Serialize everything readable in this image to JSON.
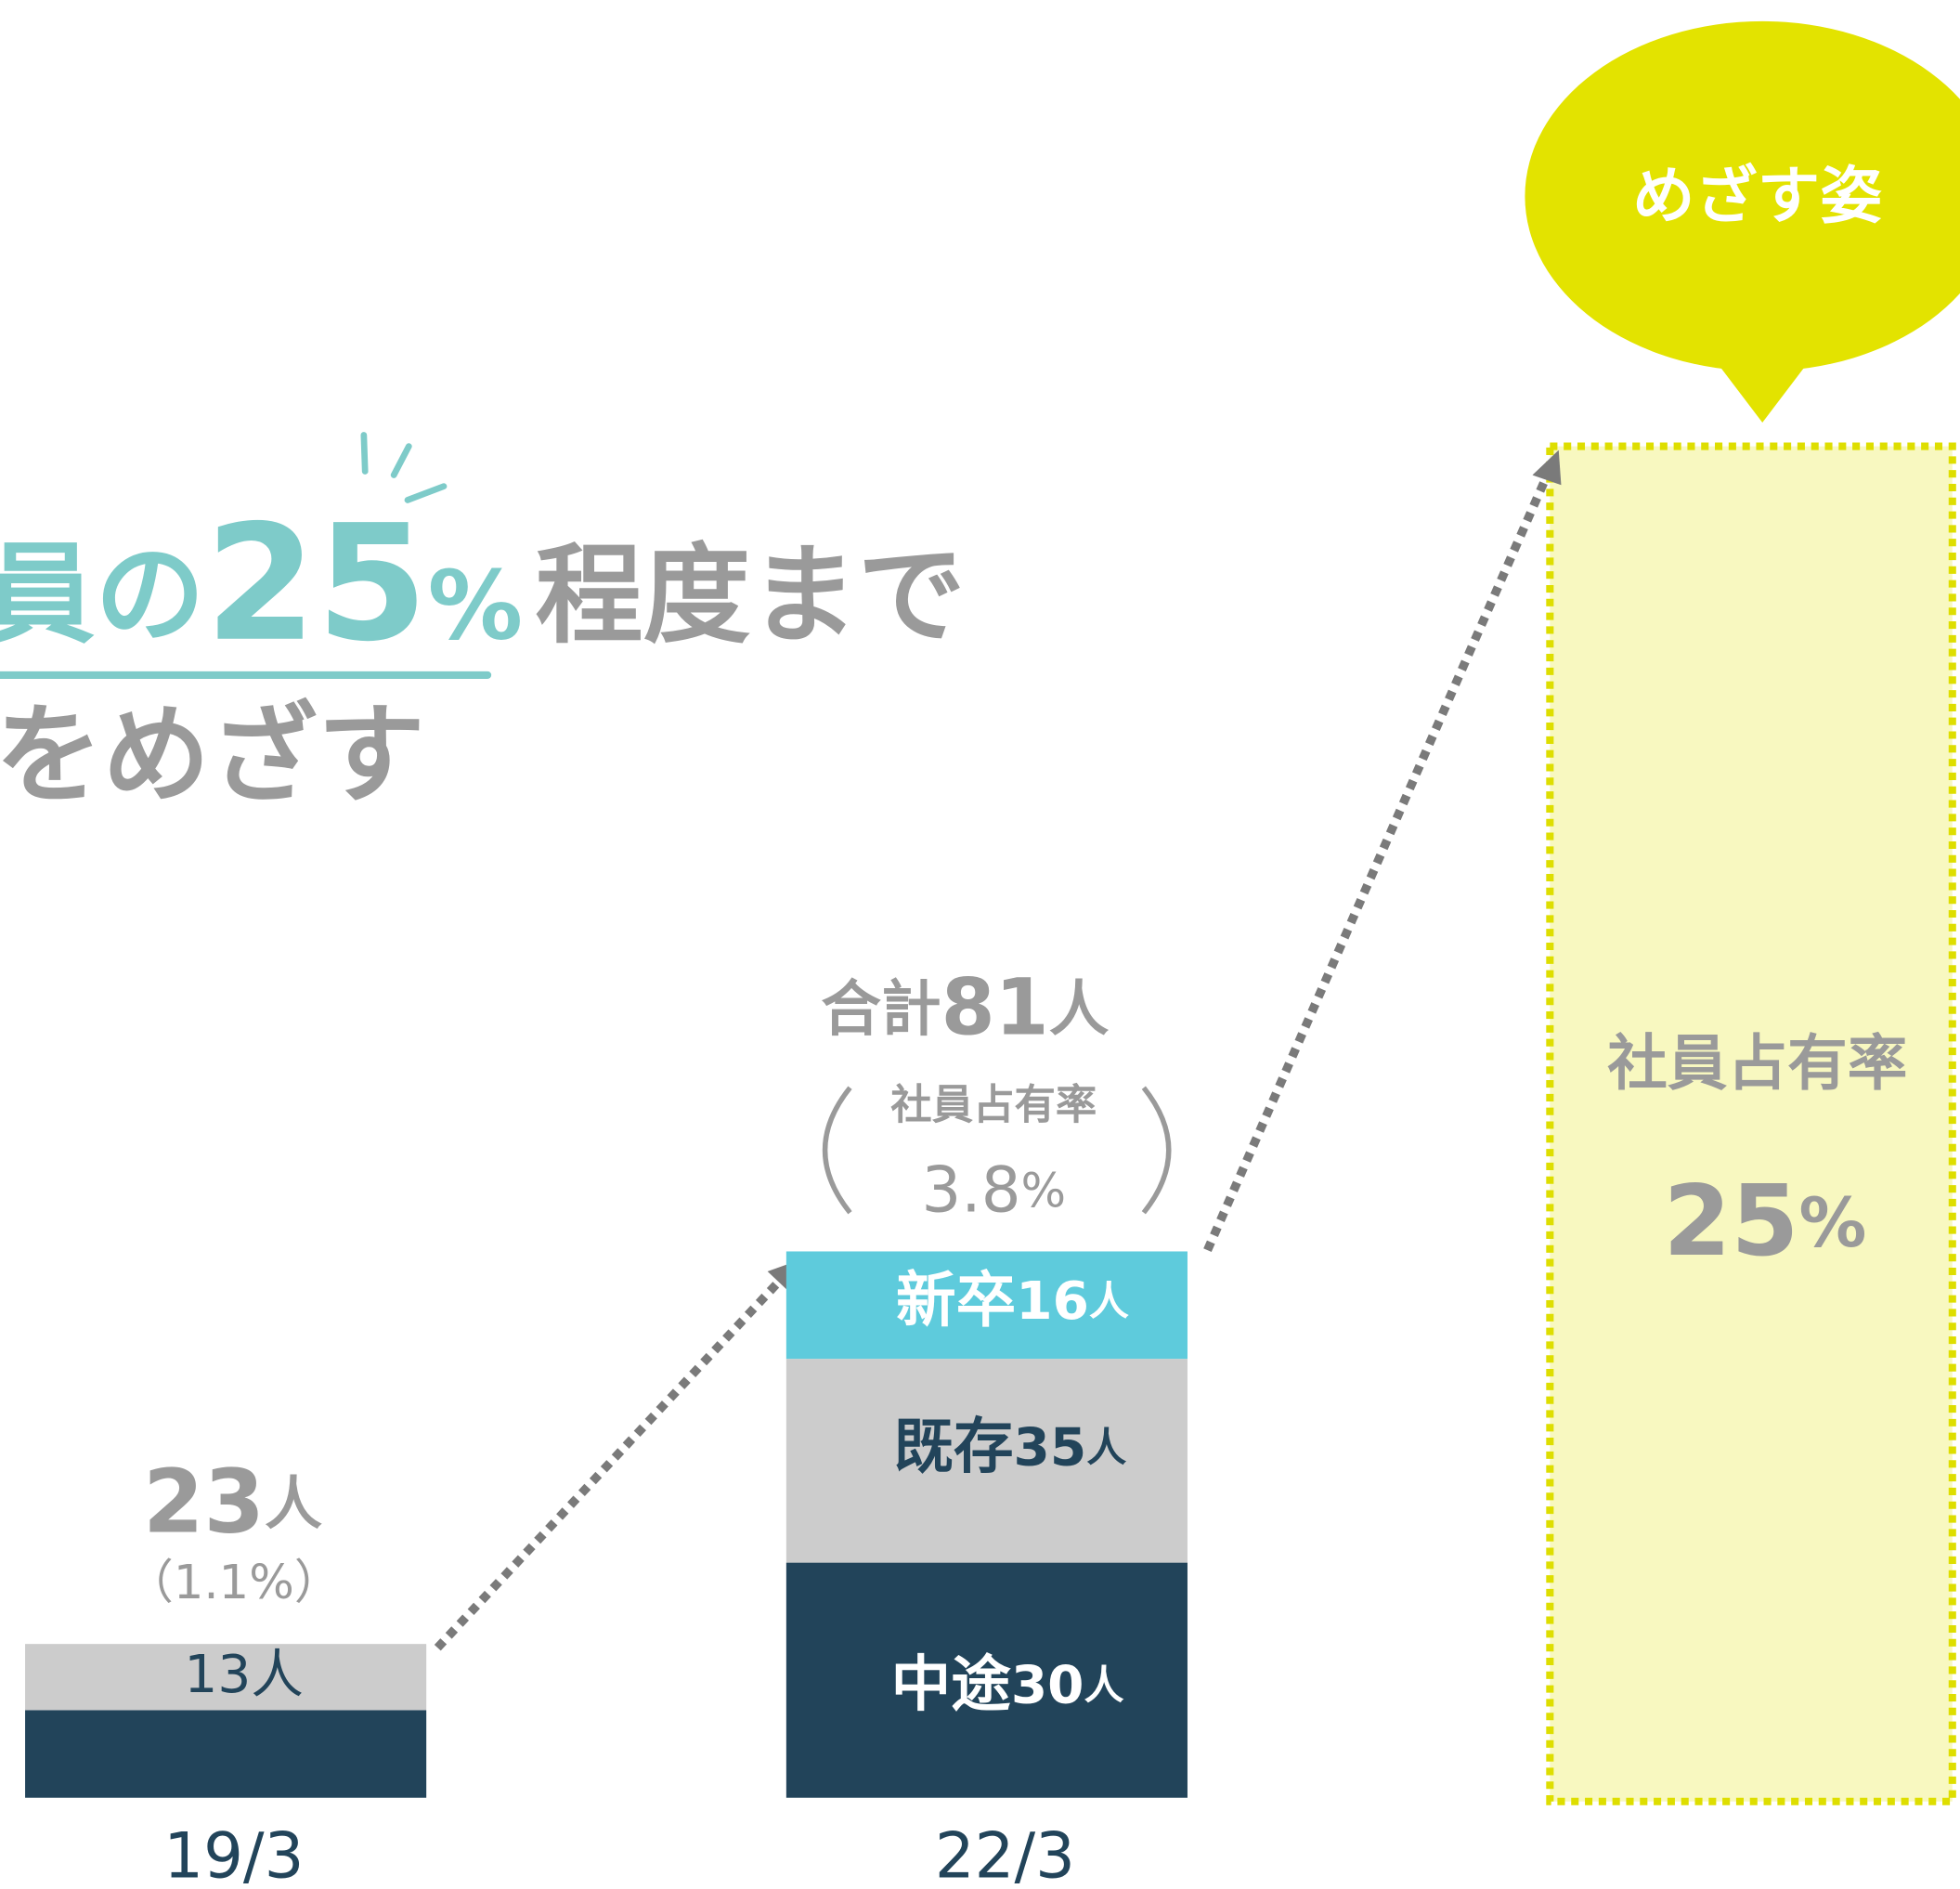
{
  "headline": {
    "prefix": "員の",
    "number": "25",
    "unit": "%",
    "suffix": "程度まで",
    "line2": "をめざす"
  },
  "bar_2019": {
    "label": "19/3",
    "total": "23",
    "total_unit": "人",
    "share": "（1.1%）",
    "segment": "13人"
  },
  "bar_2022": {
    "label": "22/3",
    "total_prefix": "合計",
    "total": "81",
    "total_unit": "人",
    "share_label": "社員占有率",
    "share": "3.8",
    "share_unit": "%",
    "segments": [
      {
        "name": "新卒",
        "value": "16",
        "unit": "人"
      },
      {
        "name": "既存",
        "value": "35",
        "unit": "人"
      },
      {
        "name": "中途",
        "value": "30",
        "unit": "人"
      }
    ]
  },
  "target": {
    "bubble": "めざす姿",
    "share_label": "社員占有率",
    "share": "25",
    "share_unit": "%"
  }
}
